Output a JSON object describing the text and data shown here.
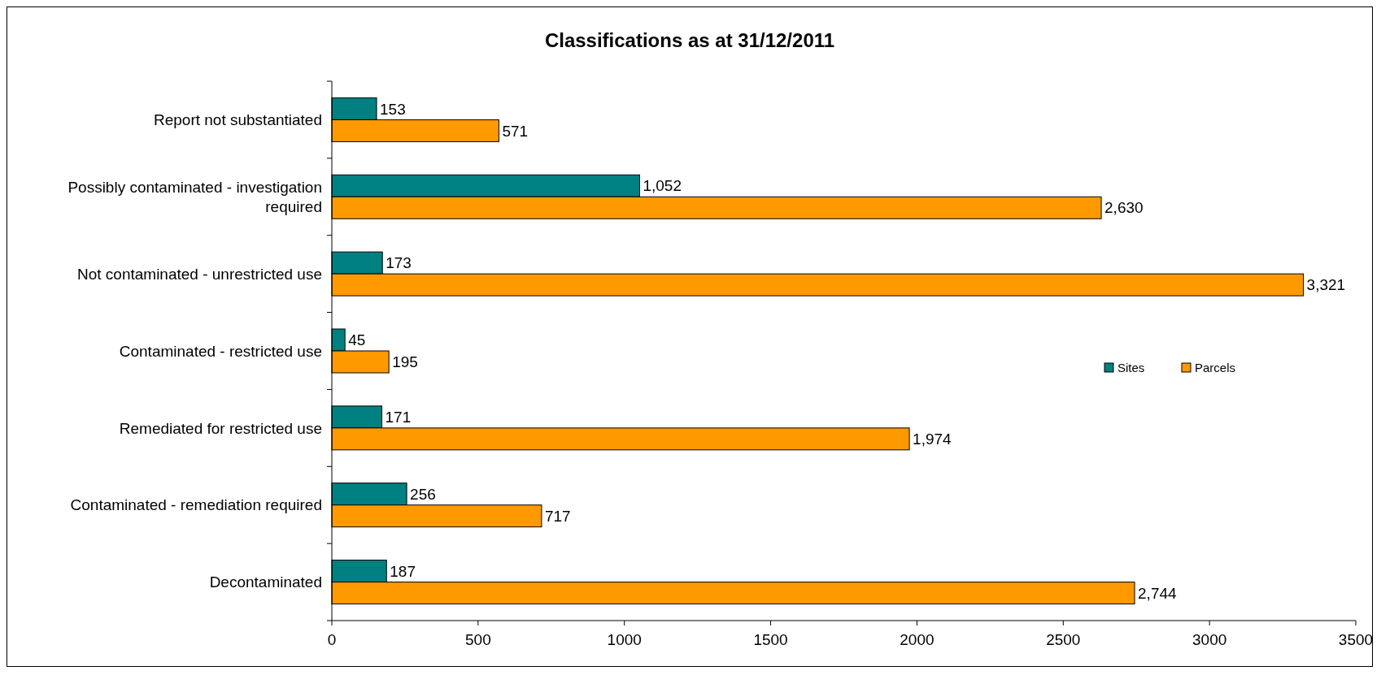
{
  "chart_data": {
    "type": "bar",
    "orientation": "horizontal",
    "title": "Classifications as at 31/12/2011",
    "categories": [
      "Report not substantiated",
      "Possibly contaminated - investigation required",
      "Not contaminated - unrestricted use",
      "Contaminated - restricted use",
      "Remediated for restricted use",
      "Contaminated - remediation required",
      "Decontaminated"
    ],
    "series": [
      {
        "name": "Sites",
        "color": "#008080",
        "values": [
          153,
          1052,
          173,
          45,
          171,
          256,
          187
        ],
        "value_labels": [
          "153",
          "1,052",
          "173",
          "45",
          "171",
          "256",
          "187"
        ]
      },
      {
        "name": "Parcels",
        "color": "#ff9900",
        "values": [
          571,
          2630,
          3321,
          195,
          1974,
          717,
          2744
        ],
        "value_labels": [
          "571",
          "2,630",
          "3,321",
          "195",
          "1,974",
          "717",
          "2,744"
        ]
      }
    ],
    "xlim": [
      0,
      3500
    ],
    "xticks": [
      0,
      500,
      1000,
      1500,
      2000,
      2500,
      3000,
      3500
    ],
    "grid": false,
    "legend": "right"
  }
}
